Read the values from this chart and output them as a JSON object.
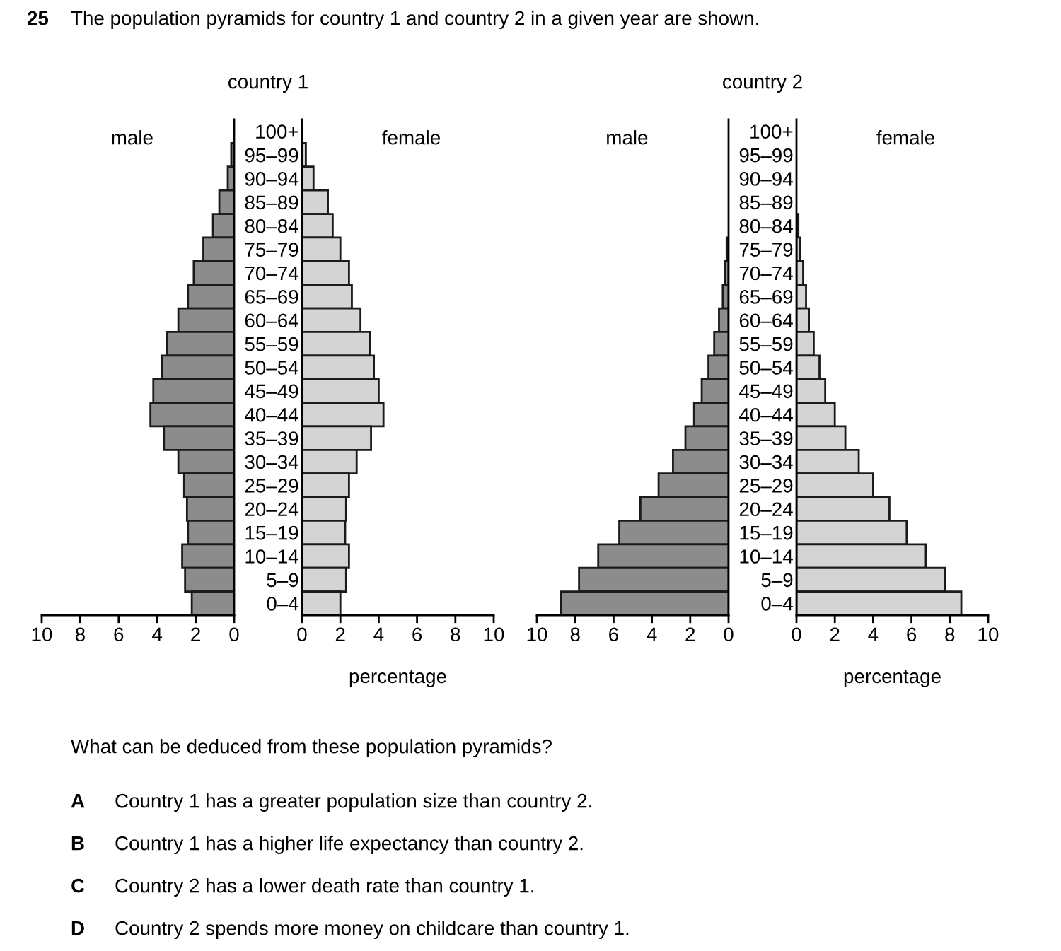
{
  "chart_data": [
    {
      "type": "bar",
      "orientation": "horizontal",
      "title": "country 1",
      "grid": false,
      "legend": false,
      "categories": [
        "100+",
        "95–99",
        "90–94",
        "85–89",
        "80–84",
        "75–79",
        "70–74",
        "65–69",
        "60–64",
        "55–59",
        "50–54",
        "45–49",
        "40–44",
        "35–39",
        "30–34",
        "25–29",
        "20–24",
        "15–19",
        "10–14",
        "5–9",
        "0–4"
      ],
      "series": [
        {
          "name": "male",
          "color": "#8c8c8c",
          "values": [
            null,
            0.15,
            0.33,
            0.77,
            1.1,
            1.6,
            2.1,
            2.4,
            2.9,
            3.5,
            3.75,
            4.2,
            4.35,
            3.65,
            2.9,
            2.6,
            2.45,
            2.4,
            2.7,
            2.55,
            2.2
          ]
        }
      ],
      "xlim": [
        10,
        0
      ],
      "xticks": [
        10,
        8,
        6,
        4,
        2,
        0
      ],
      "annotations": [
        "25 The population pyramids for country 1 and country 2 in a given year are shown.",
        "What can be deduced from these population pyramids?",
        "A Country 1 has a greater population size than country 2.",
        "B Country 1 has a higher life expectancy than country 2.",
        "C Country 2 has a lower death rate than country 1.",
        "D Country 2 spends more money on childcare than country 1."
      ]
    },
    {
      "type": "bar",
      "orientation": "horizontal",
      "xlabel": "percentage",
      "grid": false,
      "legend": false,
      "series": [
        {
          "name": "female",
          "color": "#d4d4d4",
          "values": [
            null,
            0.2,
            0.6,
            1.35,
            1.6,
            2.0,
            2.45,
            2.6,
            3.05,
            3.55,
            3.75,
            4.0,
            4.25,
            3.6,
            2.85,
            2.45,
            2.3,
            2.25,
            2.45,
            2.3,
            2.0
          ]
        }
      ],
      "xlim": [
        0,
        10
      ],
      "xticks": [
        0,
        2,
        4,
        6,
        8,
        10
      ]
    },
    {
      "type": "bar",
      "orientation": "horizontal",
      "title": "country 2",
      "grid": false,
      "legend": false,
      "categories": [
        "100+",
        "95–99",
        "90–94",
        "85–89",
        "80–84",
        "75–79",
        "70–74",
        "65–69",
        "60–64",
        "55–59",
        "50–54",
        "45–49",
        "40–44",
        "35–39",
        "30–34",
        "25–29",
        "20–24",
        "15–19",
        "10–14",
        "5–9",
        "0–4"
      ],
      "series": [
        {
          "name": "male",
          "color": "#8c8c8c",
          "values": [
            null,
            null,
            null,
            null,
            null,
            0.1,
            0.2,
            0.3,
            0.5,
            0.75,
            1.05,
            1.4,
            1.8,
            2.25,
            2.9,
            3.65,
            4.6,
            5.7,
            6.8,
            7.8,
            8.75
          ]
        }
      ],
      "xlim": [
        10,
        0
      ],
      "xticks": [
        10,
        8,
        6,
        4,
        2,
        0
      ]
    },
    {
      "type": "bar",
      "orientation": "horizontal",
      "xlabel": "percentage",
      "grid": false,
      "legend": false,
      "series": [
        {
          "name": "female",
          "color": "#d4d4d4",
          "values": [
            null,
            null,
            null,
            null,
            0.1,
            0.2,
            0.35,
            0.5,
            0.65,
            0.9,
            1.2,
            1.5,
            2.0,
            2.55,
            3.25,
            4.0,
            4.85,
            5.75,
            6.75,
            7.75,
            8.6
          ]
        }
      ],
      "xlim": [
        0,
        10
      ],
      "xticks": [
        0,
        2,
        4,
        6,
        8,
        10
      ]
    }
  ]
}
